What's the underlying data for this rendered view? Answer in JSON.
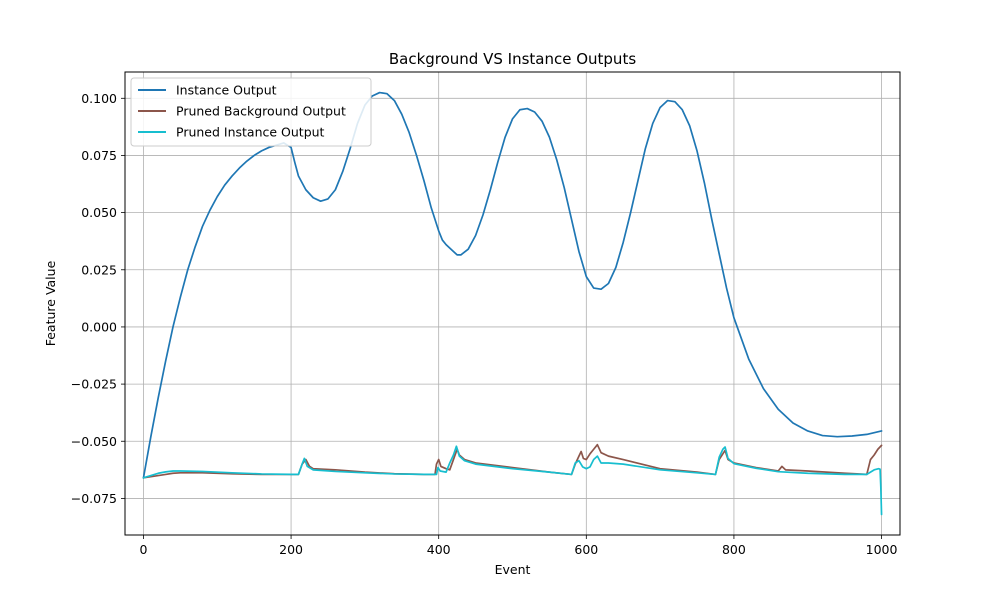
{
  "chart_data": {
    "type": "line",
    "title": "Background VS Instance Outputs",
    "xlabel": "Event",
    "ylabel": "Feature Value",
    "xlim": [
      -25,
      1025
    ],
    "ylim": [
      -0.091,
      0.1115
    ],
    "grid": true,
    "legend_position": "top-left",
    "x_ticks": [
      0,
      200,
      400,
      600,
      800,
      1000
    ],
    "x_tick_labels": [
      "0",
      "200",
      "400",
      "600",
      "800",
      "1000"
    ],
    "y_ticks": [
      -0.075,
      -0.05,
      -0.025,
      0.0,
      0.025,
      0.05,
      0.075,
      0.1
    ],
    "y_tick_labels": [
      "−0.075",
      "−0.050",
      "−0.025",
      "0.000",
      "0.025",
      "0.050",
      "0.075",
      "0.100"
    ],
    "series": [
      {
        "name": "Instance Output",
        "color": "#1f77b4",
        "x": [
          0,
          10,
          20,
          30,
          40,
          50,
          60,
          70,
          80,
          90,
          100,
          110,
          120,
          130,
          140,
          150,
          160,
          170,
          180,
          190,
          200,
          205,
          210,
          220,
          230,
          240,
          250,
          260,
          270,
          280,
          290,
          300,
          310,
          320,
          330,
          340,
          350,
          360,
          370,
          380,
          390,
          400,
          405,
          410,
          420,
          425,
          430,
          440,
          450,
          460,
          470,
          480,
          490,
          500,
          510,
          520,
          530,
          540,
          550,
          560,
          570,
          580,
          590,
          600,
          610,
          620,
          630,
          640,
          650,
          660,
          670,
          680,
          690,
          700,
          710,
          720,
          730,
          740,
          750,
          760,
          770,
          780,
          790,
          800,
          820,
          840,
          860,
          880,
          900,
          920,
          940,
          960,
          980,
          1000
        ],
        "y": [
          -0.066,
          -0.048,
          -0.031,
          -0.015,
          0.0,
          0.013,
          0.025,
          0.035,
          0.044,
          0.051,
          0.057,
          0.062,
          0.066,
          0.0695,
          0.0725,
          0.075,
          0.077,
          0.0785,
          0.0795,
          0.0805,
          0.0785,
          0.072,
          0.066,
          0.06,
          0.0565,
          0.055,
          0.056,
          0.06,
          0.068,
          0.078,
          0.089,
          0.097,
          0.101,
          0.1025,
          0.102,
          0.099,
          0.093,
          0.085,
          0.075,
          0.064,
          0.052,
          0.042,
          0.038,
          0.036,
          0.033,
          0.0315,
          0.0315,
          0.034,
          0.04,
          0.049,
          0.06,
          0.072,
          0.083,
          0.091,
          0.095,
          0.0955,
          0.094,
          0.09,
          0.083,
          0.073,
          0.061,
          0.047,
          0.033,
          0.022,
          0.017,
          0.0165,
          0.019,
          0.026,
          0.037,
          0.05,
          0.064,
          0.078,
          0.089,
          0.096,
          0.099,
          0.0985,
          0.095,
          0.088,
          0.077,
          0.063,
          0.047,
          0.032,
          0.017,
          0.004,
          -0.014,
          -0.027,
          -0.036,
          -0.042,
          -0.0455,
          -0.0475,
          -0.048,
          -0.0477,
          -0.047,
          -0.0455
        ]
      },
      {
        "name": "Pruned Background Output",
        "color": "#8c564b",
        "x": [
          0,
          10,
          20,
          30,
          40,
          50,
          80,
          120,
          160,
          200,
          210,
          215,
          220,
          225,
          230,
          260,
          300,
          340,
          380,
          395,
          397,
          400,
          403,
          410,
          415,
          420,
          425,
          428,
          435,
          450,
          500,
          550,
          580,
          585,
          590,
          593,
          596,
          600,
          605,
          610,
          615,
          620,
          630,
          650,
          700,
          750,
          775,
          780,
          785,
          788,
          792,
          800,
          830,
          860,
          865,
          870,
          900,
          950,
          980,
          985,
          990,
          995,
          1000
        ],
        "y": [
          -0.066,
          -0.0655,
          -0.065,
          -0.0645,
          -0.064,
          -0.0638,
          -0.0638,
          -0.0642,
          -0.0645,
          -0.0645,
          -0.0645,
          -0.06,
          -0.058,
          -0.061,
          -0.062,
          -0.0625,
          -0.0635,
          -0.0642,
          -0.0645,
          -0.0645,
          -0.06,
          -0.058,
          -0.061,
          -0.062,
          -0.0625,
          -0.058,
          -0.0535,
          -0.056,
          -0.058,
          -0.0595,
          -0.0615,
          -0.0635,
          -0.0645,
          -0.06,
          -0.0565,
          -0.0545,
          -0.0575,
          -0.058,
          -0.0555,
          -0.0535,
          -0.0515,
          -0.055,
          -0.0565,
          -0.058,
          -0.062,
          -0.0635,
          -0.0645,
          -0.058,
          -0.0555,
          -0.054,
          -0.058,
          -0.0595,
          -0.0615,
          -0.063,
          -0.061,
          -0.0625,
          -0.063,
          -0.064,
          -0.0645,
          -0.058,
          -0.056,
          -0.0535,
          -0.0518
        ]
      },
      {
        "name": "Pruned Instance Output",
        "color": "#17becf",
        "x": [
          0,
          10,
          20,
          30,
          40,
          50,
          80,
          120,
          160,
          200,
          210,
          215,
          218,
          222,
          230,
          260,
          300,
          340,
          380,
          397,
          399,
          402,
          410,
          415,
          420,
          424,
          428,
          435,
          450,
          500,
          550,
          580,
          585,
          590,
          595,
          600,
          605,
          610,
          615,
          620,
          630,
          650,
          700,
          750,
          775,
          780,
          785,
          788,
          792,
          800,
          830,
          860,
          900,
          950,
          980,
          985,
          990,
          996,
          998,
          999,
          1000
        ],
        "y": [
          -0.066,
          -0.065,
          -0.064,
          -0.0634,
          -0.063,
          -0.063,
          -0.0632,
          -0.0638,
          -0.0643,
          -0.0645,
          -0.0645,
          -0.06,
          -0.0575,
          -0.061,
          -0.0625,
          -0.0632,
          -0.0638,
          -0.0643,
          -0.0645,
          -0.0645,
          -0.0615,
          -0.063,
          -0.0635,
          -0.0595,
          -0.056,
          -0.0522,
          -0.0565,
          -0.0585,
          -0.06,
          -0.062,
          -0.0635,
          -0.0645,
          -0.0595,
          -0.0585,
          -0.0612,
          -0.062,
          -0.0612,
          -0.058,
          -0.0565,
          -0.0595,
          -0.0595,
          -0.06,
          -0.0625,
          -0.0638,
          -0.0645,
          -0.057,
          -0.0535,
          -0.0525,
          -0.0575,
          -0.0598,
          -0.0618,
          -0.0633,
          -0.064,
          -0.0645,
          -0.0645,
          -0.0635,
          -0.0625,
          -0.062,
          -0.0622,
          -0.07,
          -0.082
        ]
      }
    ]
  }
}
